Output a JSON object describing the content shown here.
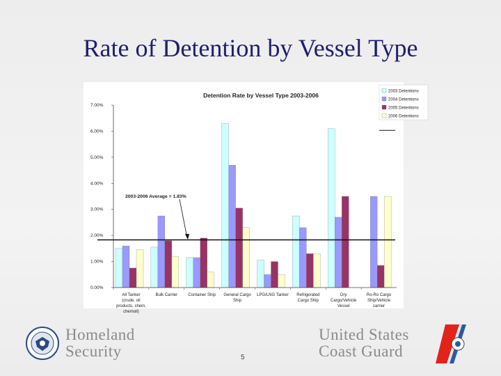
{
  "slide": {
    "title": "Rate of Detention by Vessel Type",
    "page_number": "5",
    "footer_left_line1": "Homeland",
    "footer_left_line2": "Security",
    "footer_right_line1": "United States",
    "footer_right_line2": "Coast Guard"
  },
  "colors": {
    "s2003": "#ccffff",
    "s2004": "#9999ff",
    "s2005": "#993366",
    "s2006": "#ffffcc",
    "title": "#1e1e6e"
  },
  "chart_data": {
    "type": "bar",
    "title": "Detention Rate by Vessel Type  2003-2006",
    "ylim": [
      0,
      7
    ],
    "yticks": [
      "0.00%",
      "1.00%",
      "2.00%",
      "3.00%",
      "4.00%",
      "5.00%",
      "6.00%",
      "7.00%"
    ],
    "grid": false,
    "legend_position": "top-right",
    "categories": [
      [
        "All Tanker",
        "(crude, oil",
        "products, chem,",
        "chemoil)"
      ],
      [
        "Bulk Carrier"
      ],
      [
        "Container Ship"
      ],
      [
        "General Cargo",
        "Ship"
      ],
      [
        "LPG/LNG Tanker"
      ],
      [
        "Refrigerated",
        "Cargo Ship"
      ],
      [
        "Dry",
        "Cargo/Vehicle",
        "Vessel"
      ],
      [
        "Ro-Ro Cargo",
        "Ship/Vehicle",
        "carrier"
      ]
    ],
    "series": [
      {
        "name": "2003 Detentions",
        "values": [
          1.5,
          1.55,
          1.15,
          6.3,
          1.05,
          2.75,
          6.1,
          0
        ]
      },
      {
        "name": "2004 Detentions",
        "values": [
          1.6,
          2.75,
          1.15,
          4.7,
          0.5,
          2.3,
          2.7,
          3.5
        ]
      },
      {
        "name": "2005 Detentions",
        "values": [
          0.75,
          1.8,
          1.9,
          3.05,
          1.0,
          1.3,
          3.5,
          0.85
        ]
      },
      {
        "name": "2006 Detentions",
        "values": [
          1.45,
          1.2,
          0.6,
          2.3,
          0.5,
          1.3,
          0,
          3.5
        ]
      }
    ],
    "average": {
      "value": 1.83,
      "label": "2003-2006 Average = 1.83%"
    }
  }
}
